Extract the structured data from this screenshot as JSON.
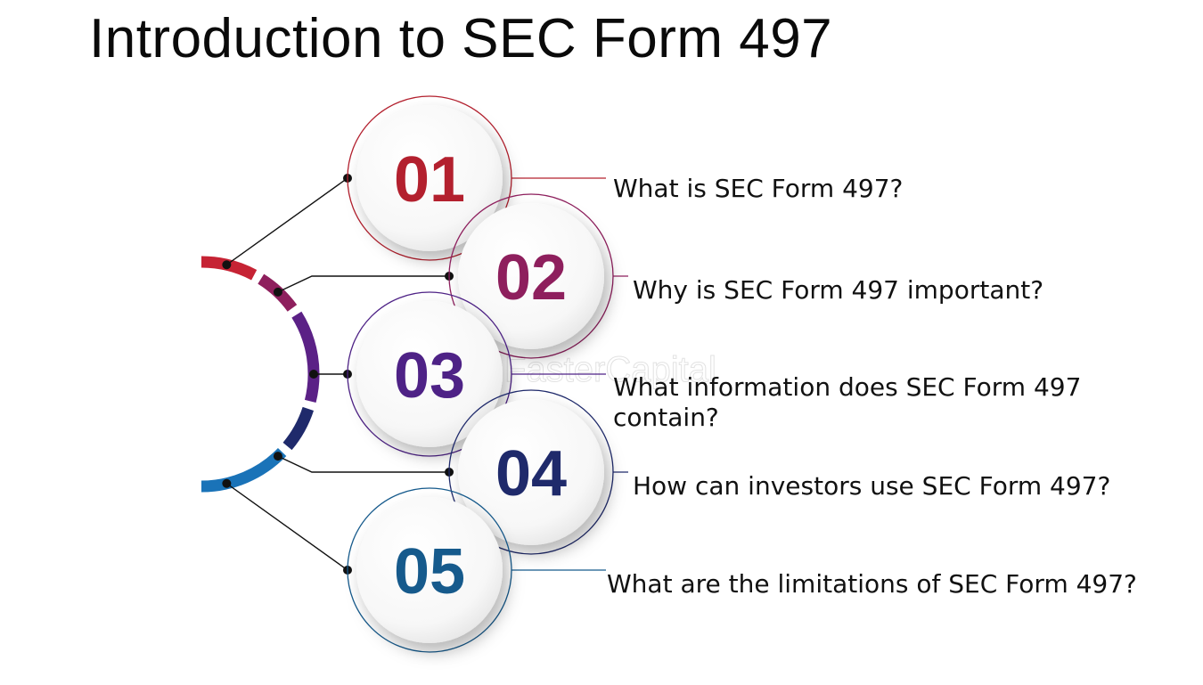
{
  "title": "Introduction to SEC Form 497",
  "watermark": "FasterCapital",
  "items": [
    {
      "number": "01",
      "label_lines": [
        "What is SEC Form 497?"
      ],
      "color": "#b3202e"
    },
    {
      "number": "02",
      "label_lines": [
        "Why is SEC Form 497 important?"
      ],
      "color": "#8e1f5d"
    },
    {
      "number": "03",
      "label_lines": [
        "What information does SEC Form 497",
        "contain?"
      ],
      "color": "#4e2286"
    },
    {
      "number": "04",
      "label_lines": [
        "How can investors use SEC Form 497?"
      ],
      "color": "#1f2a6b"
    },
    {
      "number": "05",
      "label_lines": [
        "What are the limitations of SEC Form 497?"
      ],
      "color": "#165a8c"
    }
  ],
  "arc_colors": [
    "#c62334",
    "#8e1f5d",
    "#5b2186",
    "#1f2a6b",
    "#1a73b8"
  ]
}
